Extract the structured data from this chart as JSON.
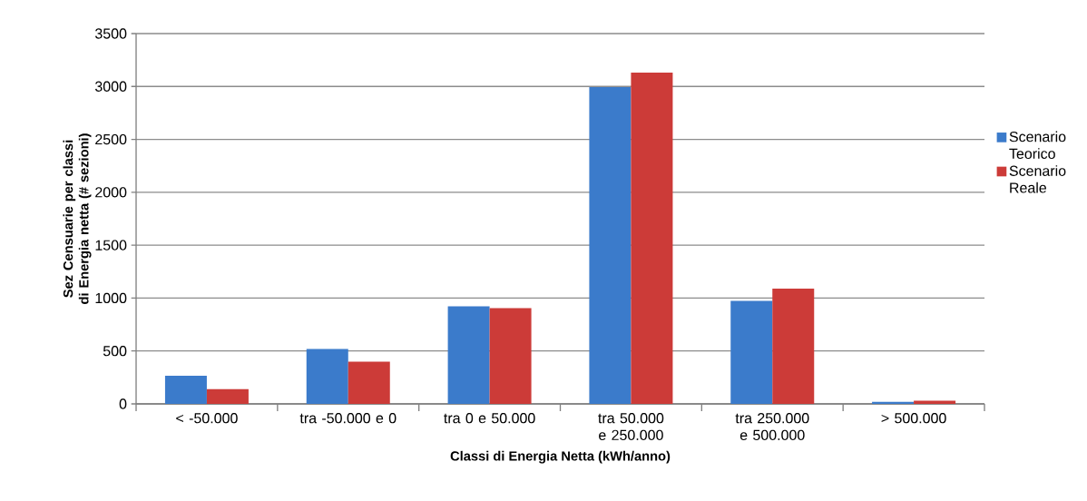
{
  "chart_data": {
    "type": "bar",
    "xlabel": "Classi di Energia Netta (kWh/anno)",
    "ylabel": "Sez Censuarie per classi di Energia netta (# sezioni)",
    "categories": [
      "< -50.000",
      "tra -50.000 e 0",
      "tra 0 e 50.000",
      "tra 50.000 e 250.000",
      "tra 250.000 e 500.000",
      "> 500.000"
    ],
    "series": [
      {
        "name": "Scenario Teorico",
        "color": "#3b7bcb",
        "values": [
          266,
          519,
          923,
          2994,
          974,
          20
        ]
      },
      {
        "name": "Scenario Reale",
        "color": "#cc3b38",
        "values": [
          140,
          398,
          905,
          3132,
          1089,
          29
        ]
      }
    ],
    "ylim": [
      0,
      3500
    ],
    "yticks": [
      0,
      500,
      1000,
      1500,
      2000,
      2500,
      3000,
      3500
    ],
    "grid": "y",
    "legend": "right"
  }
}
